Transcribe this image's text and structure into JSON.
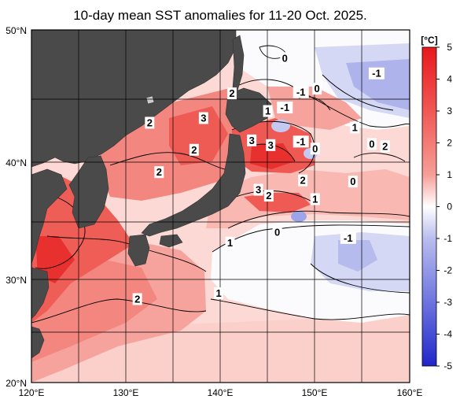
{
  "title": "10-day mean SST anomalies for 11-20 Oct. 2025.",
  "map": {
    "lon_range": [
      120,
      160
    ],
    "lat_range": [
      20,
      50
    ],
    "lon_labels": [
      "120°E",
      "130°E",
      "140°E",
      "150°E",
      "160°E"
    ],
    "lat_labels": [
      "50°N",
      "40°N",
      "30°N",
      "20°N"
    ],
    "contour_labels": [
      {
        "text": "0",
        "lon": 146.8,
        "lat": 47.5
      },
      {
        "text": "-1",
        "lon": 156.5,
        "lat": 46.2
      },
      {
        "text": "-1",
        "lon": 148.5,
        "lat": 44.6
      },
      {
        "text": "0",
        "lon": 150.2,
        "lat": 44.9
      },
      {
        "text": "2",
        "lon": 141.2,
        "lat": 44.5
      },
      {
        "text": "1",
        "lon": 145.0,
        "lat": 43.0
      },
      {
        "text": "-1",
        "lon": 146.8,
        "lat": 43.3
      },
      {
        "text": "3",
        "lon": 138.2,
        "lat": 42.4
      },
      {
        "text": "2",
        "lon": 132.5,
        "lat": 42.0
      },
      {
        "text": "1",
        "lon": 154.2,
        "lat": 41.6
      },
      {
        "text": "3",
        "lon": 143.3,
        "lat": 40.5
      },
      {
        "text": "3",
        "lon": 145.3,
        "lat": 40.1
      },
      {
        "text": "-1",
        "lon": 148.5,
        "lat": 40.4
      },
      {
        "text": "0",
        "lon": 150.0,
        "lat": 39.8
      },
      {
        "text": "0",
        "lon": 156.0,
        "lat": 40.2
      },
      {
        "text": "2",
        "lon": 157.4,
        "lat": 40.0
      },
      {
        "text": "2",
        "lon": 137.2,
        "lat": 39.7
      },
      {
        "text": "2",
        "lon": 133.5,
        "lat": 37.8
      },
      {
        "text": "2",
        "lon": 148.7,
        "lat": 37.1
      },
      {
        "text": "0",
        "lon": 154.0,
        "lat": 37.0
      },
      {
        "text": "3",
        "lon": 144.0,
        "lat": 36.3
      },
      {
        "text": "2",
        "lon": 145.1,
        "lat": 35.8
      },
      {
        "text": "1",
        "lon": 150.0,
        "lat": 35.5
      },
      {
        "text": "0",
        "lon": 146.0,
        "lat": 32.7
      },
      {
        "text": "-1",
        "lon": 153.5,
        "lat": 32.2
      },
      {
        "text": "1",
        "lon": 141.0,
        "lat": 31.8
      },
      {
        "text": "2",
        "lon": 131.2,
        "lat": 27.0
      },
      {
        "text": "1",
        "lon": 139.8,
        "lat": 27.5
      }
    ]
  },
  "colorbar": {
    "unit": "[°C]",
    "tick_labels": [
      "5",
      "4",
      "3",
      "2",
      "1",
      "0",
      "-1",
      "-2",
      "-3",
      "-4",
      "-5"
    ],
    "colors": {
      "c5": "#e8191c",
      "c4": "#ee4a46",
      "c3": "#f37a73",
      "c2": "#f7a39d",
      "c1": "#fbccc6",
      "c0pos": "#fdeceb",
      "c0neg": "#ecedf9",
      "cm1": "#c5c9f1",
      "cm2": "#9ea4ea",
      "cm3": "#7279e0",
      "cm4": "#4a52d7",
      "cm5": "#1f26c9"
    }
  },
  "land_color": "#4a4a4a"
}
